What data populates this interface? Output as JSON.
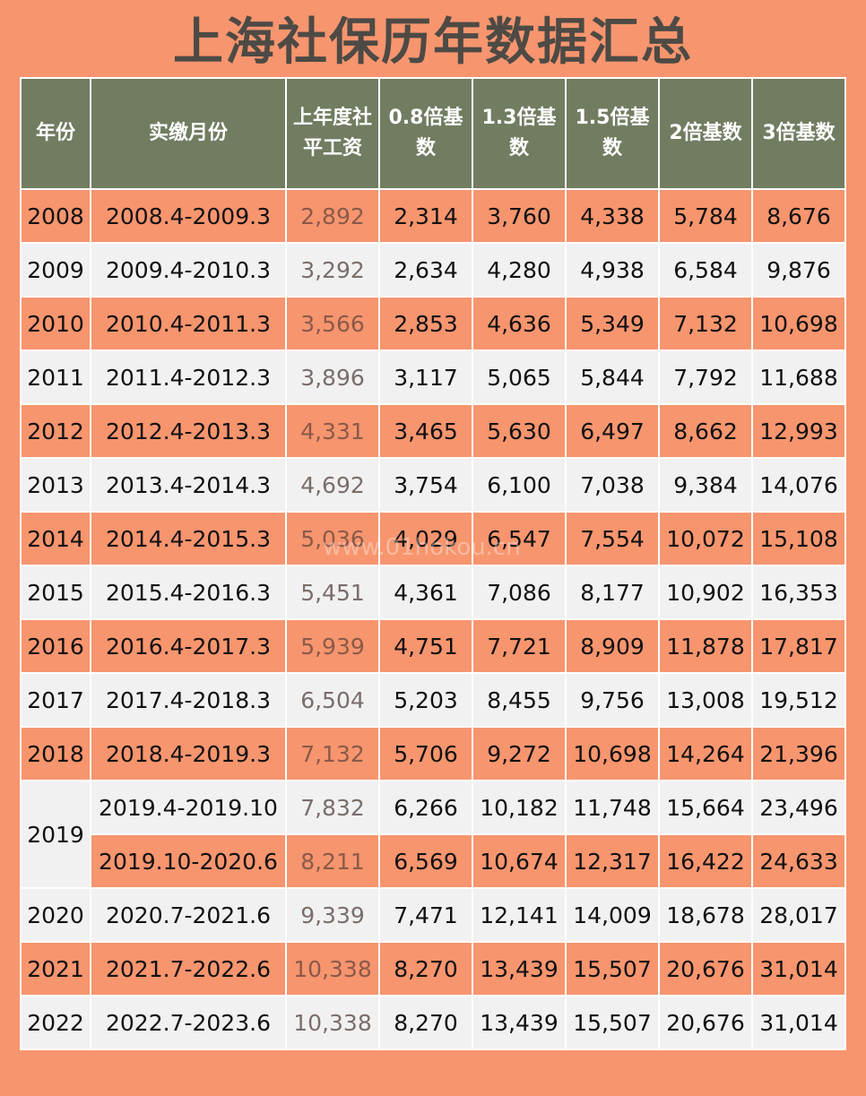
{
  "title": "上海社保历年数据汇总",
  "watermark": "www.01hokou.cn",
  "headers": [
    "年份",
    "实缴月份",
    "上年度社平工资",
    "0.8倍基数",
    "1.3倍基数",
    "1.5倍基数",
    "2倍基数",
    "3倍基数"
  ],
  "rows": [
    {
      "year": "2008",
      "period": "2008.4-2009.3",
      "wage": "2,892",
      "b08": "2,314",
      "b13": "3,760",
      "b15": "4,338",
      "b2": "5,784",
      "b3": "8,676"
    },
    {
      "year": "2009",
      "period": "2009.4-2010.3",
      "wage": "3,292",
      "b08": "2,634",
      "b13": "4,280",
      "b15": "4,938",
      "b2": "6,584",
      "b3": "9,876"
    },
    {
      "year": "2010",
      "period": "2010.4-2011.3",
      "wage": "3,566",
      "b08": "2,853",
      "b13": "4,636",
      "b15": "5,349",
      "b2": "7,132",
      "b3": "10,698"
    },
    {
      "year": "2011",
      "period": "2011.4-2012.3",
      "wage": "3,896",
      "b08": "3,117",
      "b13": "5,065",
      "b15": "5,844",
      "b2": "7,792",
      "b3": "11,688"
    },
    {
      "year": "2012",
      "period": "2012.4-2013.3",
      "wage": "4,331",
      "b08": "3,465",
      "b13": "5,630",
      "b15": "6,497",
      "b2": "8,662",
      "b3": "12,993"
    },
    {
      "year": "2013",
      "period": "2013.4-2014.3",
      "wage": "4,692",
      "b08": "3,754",
      "b13": "6,100",
      "b15": "7,038",
      "b2": "9,384",
      "b3": "14,076"
    },
    {
      "year": "2014",
      "period": "2014.4-2015.3",
      "wage": "5,036",
      "b08": "4,029",
      "b13": "6,547",
      "b15": "7,554",
      "b2": "10,072",
      "b3": "15,108"
    },
    {
      "year": "2015",
      "period": "2015.4-2016.3",
      "wage": "5,451",
      "b08": "4,361",
      "b13": "7,086",
      "b15": "8,177",
      "b2": "10,902",
      "b3": "16,353"
    },
    {
      "year": "2016",
      "period": "2016.4-2017.3",
      "wage": "5,939",
      "b08": "4,751",
      "b13": "7,721",
      "b15": "8,909",
      "b2": "11,878",
      "b3": "17,817"
    },
    {
      "year": "2017",
      "period": "2017.4-2018.3",
      "wage": "6,504",
      "b08": "5,203",
      "b13": "8,455",
      "b15": "9,756",
      "b2": "13,008",
      "b3": "19,512"
    },
    {
      "year": "2018",
      "period": "2018.4-2019.3",
      "wage": "7,132",
      "b08": "5,706",
      "b13": "9,272",
      "b15": "10,698",
      "b2": "14,264",
      "b3": "21,396"
    },
    {
      "year": "2019",
      "period": "2019.4-2019.10",
      "wage": "7,832",
      "b08": "6,266",
      "b13": "10,182",
      "b15": "11,748",
      "b2": "15,664",
      "b3": "23,496"
    },
    {
      "year": "",
      "period": "2019.10-2020.6",
      "wage": "8,211",
      "b08": "6,569",
      "b13": "10,674",
      "b15": "12,317",
      "b2": "16,422",
      "b3": "24,633"
    },
    {
      "year": "2020",
      "period": "2020.7-2021.6",
      "wage": "9,339",
      "b08": "7,471",
      "b13": "12,141",
      "b15": "14,009",
      "b2": "18,678",
      "b3": "28,017"
    },
    {
      "year": "2021",
      "period": "2021.7-2022.6",
      "wage": "10,338",
      "b08": "8,270",
      "b13": "13,439",
      "b15": "15,507",
      "b2": "20,676",
      "b3": "31,014"
    },
    {
      "year": "2022",
      "period": "2022.7-2023.6",
      "wage": "10,338",
      "b08": "8,270",
      "b13": "13,439",
      "b15": "15,507",
      "b2": "20,676",
      "b3": "31,014"
    }
  ]
}
